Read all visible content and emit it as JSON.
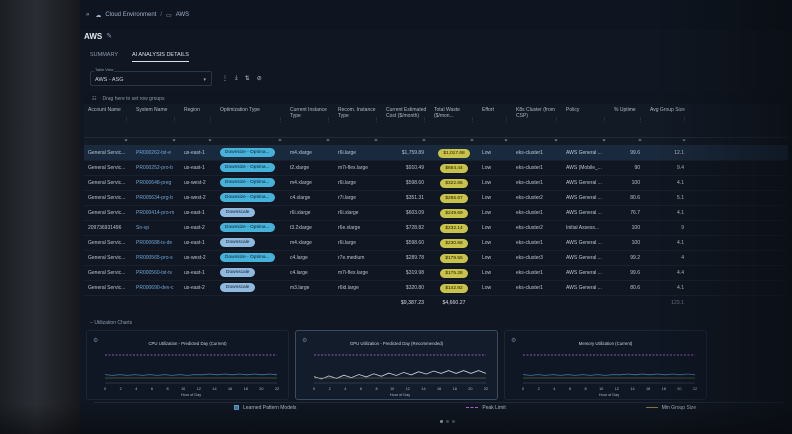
{
  "breadcrumb": {
    "root": "Cloud Environment",
    "current": "AWS"
  },
  "page": {
    "title": "AWS"
  },
  "tabs": [
    {
      "label": "SUMMARY"
    },
    {
      "label": "AI ANALYSIS DETAILS"
    }
  ],
  "view": {
    "label": "Table View",
    "value": "AWS - ASG"
  },
  "grid": {
    "group_hint": "Drag here to set row groups",
    "columns": [
      "Account Name",
      "System Name",
      "Region",
      "Optimization Type",
      "Current Instance Type",
      "Recom. Instance Type",
      "Current Estimated Cost ($/month)",
      "Total Waste ($/mon...",
      "Effort",
      "K8s Cluster (from CSP)",
      "Policy",
      "% Uptime",
      "Avg Group Size"
    ],
    "rows": [
      [
        "General Servic...",
        "PR000262-tst-e",
        "us-east-1",
        "Downsize - Optima...",
        "m4.xlarge",
        "r6i.large",
        "$1,759.89",
        "$1,017.68",
        "Low",
        "eks-cluster1",
        "AWS General ...",
        "99.6",
        "12.1"
      ],
      [
        "General Servic...",
        "PR000252-pro-b",
        "us-east-1",
        "Downsize - Optima...",
        "t2.xlarge",
        "m7i-flex.large",
        "$910.49",
        "$664.44",
        "Low",
        "eks-cluster1",
        "AWS (Mobile_...",
        "90",
        "9.4"
      ],
      [
        "General Servic...",
        "PR000648-preg",
        "us-west-2",
        "Downsize - Optima...",
        "m4.xlarge",
        "r6i.large",
        "$598.60",
        "$322.66",
        "Low",
        "eks-cluster1",
        "AWS General ...",
        "100",
        "4.1"
      ],
      [
        "General Servic...",
        "PR005634-prg-b",
        "us-west-2",
        "Downsize - Optima...",
        "c4.xlarge",
        "r7i.large",
        "$351.31",
        "$265.67",
        "Low",
        "eks-cluster2",
        "AWS General ...",
        "80.6",
        "5.1"
      ],
      [
        "General Servic...",
        "PR000414-pro-m",
        "us-east-1",
        "Downscale",
        "r6i.xlarge",
        "r6i.xlarge",
        "$603.09",
        "$249.69",
        "Low",
        "eks-cluster1",
        "AWS General ...",
        "76.7",
        "4.1"
      ],
      [
        "209736931496",
        "Sn-vp",
        "us-east-2",
        "Downsize - Optima...",
        "t3.2xlarge",
        "r6e.xlarge",
        "$728.82",
        "$232.14",
        "Low",
        "eks-cluster2",
        "Initial Assess...",
        "100",
        "9"
      ],
      [
        "General Servic...",
        "PR000688-is-de",
        "us-east-1",
        "Downscale",
        "m4.xlarge",
        "r6i.large",
        "$598.60",
        "$230.68",
        "Low",
        "eks-cluster1",
        "AWS General ...",
        "100",
        "4.1"
      ],
      [
        "General Servic...",
        "PR000565-pro-s",
        "us-west-2",
        "Downsize - Optima...",
        "c4.large",
        "r7e.medium",
        "$289.78",
        "$179.55",
        "Low",
        "eks-cluster3",
        "AWS General ...",
        "99.2",
        "4"
      ],
      [
        "General Servic...",
        "PR000560-tst-tv",
        "us-east-1",
        "Downscale",
        "c4.large",
        "m7i-flex.large",
        "$319.98",
        "$175.28",
        "Low",
        "eks-cluster1",
        "AWS General ...",
        "99.6",
        "4.4"
      ],
      [
        "General Servic...",
        "PR000690-dev-c",
        "us-east-2",
        "Downscale",
        "m3.large",
        "r6id.large",
        "$320.80",
        "$142.92",
        "Low",
        "eks-cluster1",
        "AWS General ...",
        "80.6",
        "4.1"
      ]
    ],
    "totals": {
      "cost": "$9,387.23",
      "waste": "$4,660.27",
      "group": "123.1"
    }
  },
  "charts_section": {
    "label": "Utilization Charts",
    "cards": [
      {
        "title": "CPU Utilization - Predicted Day (Current)",
        "x_label": "Hour of Day",
        "ticks": [
          "0",
          "2",
          "4",
          "6",
          "8",
          "10",
          "12",
          "14",
          "16",
          "18",
          "20",
          "22"
        ]
      },
      {
        "title": "GPU Utilization - Predicted Day (Recommended)",
        "x_label": "Hour of Day",
        "ticks": [
          "0",
          "2",
          "4",
          "6",
          "8",
          "10",
          "12",
          "14",
          "16",
          "18",
          "20",
          "22"
        ]
      },
      {
        "title": "Memory Utilization (Current)",
        "x_label": "Hour of Day",
        "ticks": [
          "0",
          "2",
          "4",
          "6",
          "8",
          "10",
          "12",
          "14",
          "16",
          "18",
          "20",
          "22"
        ]
      }
    ],
    "legend": {
      "learned": "Learned Pattern Models",
      "peak": "Peak Limit",
      "min_group": "Min Group Size"
    }
  },
  "colors": {
    "accent": "#46b1d9",
    "waste": "#c9c24b",
    "peak": "#b06ad6",
    "line": "#3c7ea8"
  }
}
